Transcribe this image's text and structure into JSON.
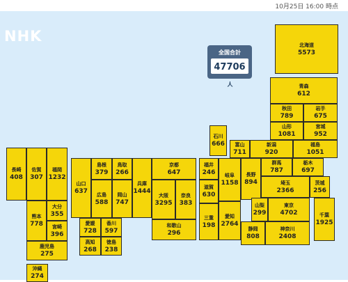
{
  "timestamp": "10月25日 16:00 時点",
  "logo": "NHK",
  "total": {
    "label": "全国合計",
    "value": "47706",
    "unit": "人"
  },
  "prefectures": {
    "hokkaido": {
      "name": "北海道",
      "value": "5573"
    },
    "aomori": {
      "name": "青森",
      "value": "612"
    },
    "akita": {
      "name": "秋田",
      "value": "789"
    },
    "iwate": {
      "name": "岩手",
      "value": "675"
    },
    "yamagata": {
      "name": "山形",
      "value": "1081"
    },
    "miyagi": {
      "name": "宮城",
      "value": "952"
    },
    "ishikawa": {
      "name": "石川",
      "value": "666"
    },
    "toyama": {
      "name": "富山",
      "value": "711"
    },
    "niigata": {
      "name": "新潟",
      "value": "920"
    },
    "fukushima": {
      "name": "福島",
      "value": "1051"
    },
    "nagasaki": {
      "name": "長崎",
      "value": "408"
    },
    "saga": {
      "name": "佐賀",
      "value": "307"
    },
    "fukuoka": {
      "name": "福岡",
      "value": "1232"
    },
    "yamaguchi": {
      "name": "山口",
      "value": "637"
    },
    "shimane": {
      "name": "島根",
      "value": "379"
    },
    "tottori": {
      "name": "鳥取",
      "value": "266"
    },
    "hiroshima": {
      "name": "広島",
      "value": "588"
    },
    "okayama": {
      "name": "岡山",
      "value": "747"
    },
    "hyogo": {
      "name": "兵庫",
      "value": "1444"
    },
    "kyoto": {
      "name": "京都",
      "value": "647"
    },
    "fukui": {
      "name": "福井",
      "value": "246"
    },
    "shiga": {
      "name": "滋賀",
      "value": "630"
    },
    "gifu": {
      "name": "岐阜",
      "value": "1158"
    },
    "nagano": {
      "name": "長野",
      "value": "894"
    },
    "gunma": {
      "name": "群馬",
      "value": "787"
    },
    "tochigi": {
      "name": "栃木",
      "value": "697"
    },
    "saitama": {
      "name": "埼玉",
      "value": "2366"
    },
    "ibaraki": {
      "name": "茨城",
      "value": "256"
    },
    "oita": {
      "name": "大分",
      "value": "355"
    },
    "kumamoto": {
      "name": "熊本",
      "value": "778"
    },
    "miyazaki": {
      "name": "宮崎",
      "value": "396"
    },
    "ehime": {
      "name": "愛媛",
      "value": "728"
    },
    "kagawa": {
      "name": "香川",
      "value": "597"
    },
    "osaka": {
      "name": "大阪",
      "value": "3295"
    },
    "nara": {
      "name": "奈良",
      "value": "383"
    },
    "mie": {
      "name": "三重",
      "value": "198"
    },
    "aichi": {
      "name": "愛知",
      "value": "2764"
    },
    "yamanashi": {
      "name": "山梨",
      "value": "299"
    },
    "tokyo": {
      "name": "東京",
      "value": "4702"
    },
    "chiba": {
      "name": "千葉",
      "value": "1925"
    },
    "kochi": {
      "name": "高知",
      "value": "268"
    },
    "tokushima": {
      "name": "徳島",
      "value": "238"
    },
    "wakayama": {
      "name": "和歌山",
      "value": "296"
    },
    "shizuoka": {
      "name": "静岡",
      "value": "808"
    },
    "kanagawa": {
      "name": "神奈川",
      "value": "2408"
    },
    "kagoshima": {
      "name": "鹿児島",
      "value": "275"
    },
    "okinawa": {
      "name": "沖縄",
      "value": "274"
    }
  }
}
